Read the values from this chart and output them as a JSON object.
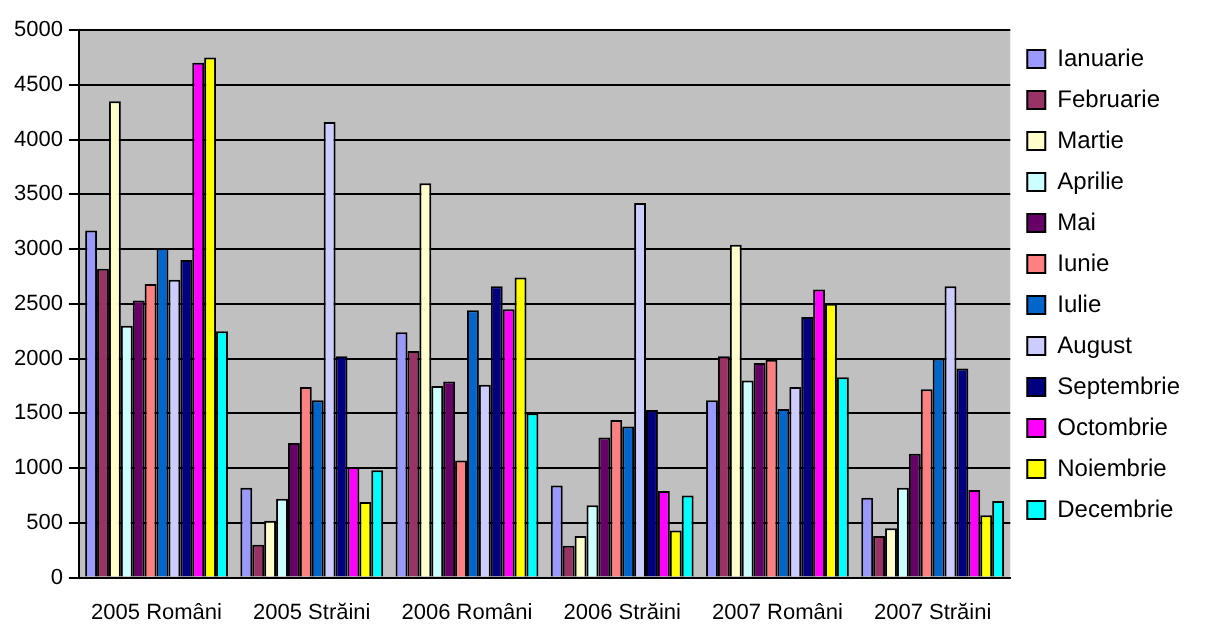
{
  "chart_data": {
    "type": "bar",
    "categories": [
      "2005 Români",
      "2005 Străini",
      "2006 Români",
      "2006 Străini",
      "2007 Români",
      "2007 Străini"
    ],
    "series": [
      {
        "name": "Ianuarie",
        "color": "#9999ff",
        "values": [
          3170,
          820,
          2240,
          840,
          1620,
          730
        ]
      },
      {
        "name": "Februarie",
        "color": "#993366",
        "values": [
          2820,
          300,
          2070,
          290,
          2020,
          380
        ]
      },
      {
        "name": "Martie",
        "color": "#ffffcc",
        "values": [
          4350,
          520,
          3600,
          380,
          3040,
          450
        ]
      },
      {
        "name": "Aprilie",
        "color": "#ccffff",
        "values": [
          2300,
          720,
          1750,
          660,
          1800,
          820
        ]
      },
      {
        "name": "Mai",
        "color": "#660066",
        "values": [
          2530,
          1230,
          1790,
          1280,
          1960,
          1130
        ]
      },
      {
        "name": "Iunie",
        "color": "#ff8080",
        "values": [
          2680,
          1740,
          1070,
          1440,
          1990,
          1720
        ]
      },
      {
        "name": "Iulie",
        "color": "#0066cc",
        "values": [
          3010,
          1620,
          2440,
          1380,
          1540,
          2000
        ]
      },
      {
        "name": "August",
        "color": "#ccccff",
        "values": [
          2720,
          4160,
          1760,
          3420,
          1740,
          2660
        ]
      },
      {
        "name": "Septembrie",
        "color": "#000080",
        "values": [
          2900,
          2020,
          2660,
          1530,
          2380,
          1910
        ]
      },
      {
        "name": "Octombrie",
        "color": "#ff00ff",
        "values": [
          4700,
          1010,
          2450,
          790,
          2630,
          800
        ]
      },
      {
        "name": "Noiembrie",
        "color": "#ffff00",
        "values": [
          4750,
          690,
          2740,
          430,
          2500,
          570
        ]
      },
      {
        "name": "Decembrie",
        "color": "#00ffff",
        "values": [
          2250,
          980,
          1500,
          750,
          1830,
          700
        ]
      }
    ],
    "ylim": [
      0,
      5000
    ],
    "yticks": [
      0,
      500,
      1000,
      1500,
      2000,
      2500,
      3000,
      3500,
      4000,
      4500,
      5000
    ],
    "grid": "y",
    "legend": "right"
  }
}
